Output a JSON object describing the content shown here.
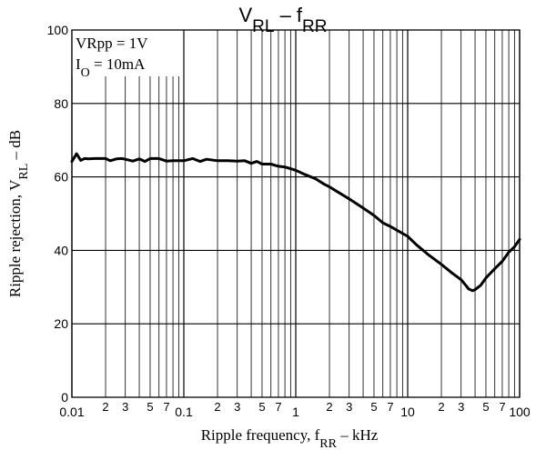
{
  "chart_data": {
    "type": "line",
    "title": {
      "main": "V",
      "sub1": "RL",
      "dash": " – f",
      "sub2": "RR"
    },
    "xlabel": {
      "pre": "Ripple frequency, f",
      "sub": "RR",
      "post": " – kHz"
    },
    "ylabel": {
      "pre": "Ripple rejection, V",
      "sub": "RL",
      "post": " – dB"
    },
    "x_scale": "log",
    "xlim": [
      0.01,
      100
    ],
    "ylim": [
      0,
      100
    ],
    "grid": true,
    "x_major_ticks": [
      {
        "value": 0.01,
        "label": "0.01"
      },
      {
        "value": 0.1,
        "label": "0.1"
      },
      {
        "value": 1,
        "label": "1"
      },
      {
        "value": 10,
        "label": "10"
      },
      {
        "value": 100,
        "label": "100"
      }
    ],
    "x_minor_ticks": [
      {
        "value": 0.02,
        "label": "2"
      },
      {
        "value": 0.03,
        "label": "3"
      },
      {
        "value": 0.05,
        "label": "5"
      },
      {
        "value": 0.07,
        "label": "7"
      },
      {
        "value": 0.2,
        "label": "2"
      },
      {
        "value": 0.3,
        "label": "3"
      },
      {
        "value": 0.5,
        "label": "5"
      },
      {
        "value": 0.7,
        "label": "7"
      },
      {
        "value": 2,
        "label": "2"
      },
      {
        "value": 3,
        "label": "3"
      },
      {
        "value": 5,
        "label": "5"
      },
      {
        "value": 7,
        "label": "7"
      },
      {
        "value": 20,
        "label": "2"
      },
      {
        "value": 30,
        "label": "3"
      },
      {
        "value": 50,
        "label": "5"
      },
      {
        "value": 70,
        "label": "7"
      }
    ],
    "x_minor_gridlines": [
      0.02,
      0.03,
      0.04,
      0.05,
      0.06,
      0.07,
      0.08,
      0.09,
      0.2,
      0.3,
      0.4,
      0.5,
      0.6,
      0.7,
      0.8,
      0.9,
      2,
      3,
      4,
      5,
      6,
      7,
      8,
      9,
      20,
      30,
      40,
      50,
      60,
      70,
      80,
      90
    ],
    "y_ticks": [
      {
        "value": 0,
        "label": "0"
      },
      {
        "value": 20,
        "label": "20"
      },
      {
        "value": 40,
        "label": "40"
      },
      {
        "value": 60,
        "label": "60"
      },
      {
        "value": 80,
        "label": "80"
      },
      {
        "value": 100,
        "label": "100"
      }
    ],
    "annotations": [
      {
        "id": "vrpp",
        "text": "VRpp = 1V"
      },
      {
        "id": "io",
        "main": "I",
        "sub": "O",
        "rest": " = 10mA"
      }
    ],
    "series": [
      {
        "x": [
          0.01,
          0.011,
          0.012,
          0.013,
          0.014,
          0.016,
          0.018,
          0.02,
          0.022,
          0.025,
          0.028,
          0.03,
          0.035,
          0.04,
          0.045,
          0.05,
          0.06,
          0.07,
          0.08,
          0.1,
          0.12,
          0.14,
          0.16,
          0.2,
          0.25,
          0.3,
          0.35,
          0.4,
          0.45,
          0.5,
          0.6,
          0.7,
          0.8,
          1.0,
          1.2,
          1.5,
          1.8,
          2.0,
          2.5,
          3.0,
          4.0,
          5.0,
          6.0,
          7.0,
          10,
          12,
          15,
          20,
          25,
          30,
          33,
          35,
          38,
          40,
          45,
          50,
          60,
          70,
          80,
          90,
          100
        ],
        "y": [
          64.2,
          66.3,
          64.5,
          65.0,
          64.9,
          65.0,
          65.0,
          65.0,
          64.4,
          64.9,
          65.0,
          64.8,
          64.3,
          64.9,
          64.2,
          65.0,
          65.0,
          64.3,
          64.4,
          64.4,
          65.0,
          64.2,
          64.8,
          64.4,
          64.4,
          64.3,
          64.4,
          63.7,
          64.2,
          63.5,
          63.5,
          62.9,
          62.7,
          61.8,
          60.7,
          59.5,
          58.0,
          57.3,
          55.5,
          54.0,
          51.5,
          49.5,
          47.5,
          46.5,
          43.8,
          41.5,
          39.0,
          36.2,
          33.8,
          32.0,
          30.5,
          29.5,
          29.0,
          29.3,
          30.5,
          32.5,
          35.0,
          37.0,
          39.5,
          41.0,
          43.0
        ]
      }
    ]
  }
}
